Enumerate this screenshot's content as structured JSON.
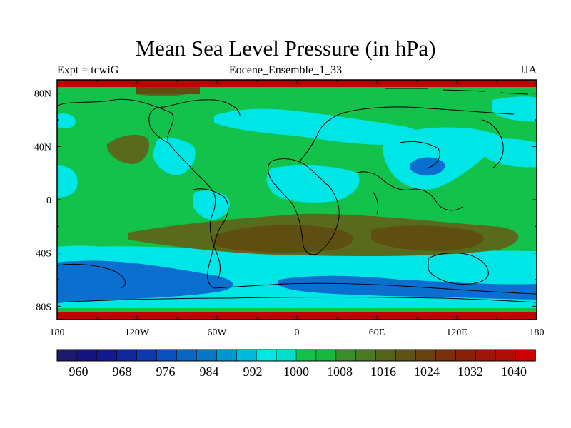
{
  "title": "Mean Sea Level Pressure (in hPa)",
  "subtitle_left": "Expt = tcwiG",
  "subtitle_center": "Eocene_Ensemble_1_33",
  "subtitle_right": "JJA",
  "colors": {
    "deep_blue": "#0a55b5",
    "mid_blue": "#0096d0",
    "cyan": "#00e6e6",
    "green": "#12c24a",
    "olive": "#5a6a1c",
    "brown": "#5e4e12",
    "dark_red": "#c00000",
    "coast": "#000000"
  },
  "map": {
    "projection": "cylindrical equidistant",
    "lon_range": [
      -180,
      180
    ],
    "lat_range": [
      -90,
      90
    ]
  },
  "axes": {
    "lat_ticks": [
      {
        "value": 80,
        "label": "80N"
      },
      {
        "value": 40,
        "label": "40N"
      },
      {
        "value": 0,
        "label": "0"
      },
      {
        "value": -40,
        "label": "40S"
      },
      {
        "value": -80,
        "label": "80S"
      }
    ],
    "lon_ticks": [
      {
        "value": -180,
        "label": "180"
      },
      {
        "value": -120,
        "label": "120W"
      },
      {
        "value": -60,
        "label": "60W"
      },
      {
        "value": 0,
        "label": "0"
      },
      {
        "value": 60,
        "label": "60E"
      },
      {
        "value": 120,
        "label": "120E"
      },
      {
        "value": 180,
        "label": "180"
      }
    ]
  },
  "colorbar": {
    "colors": [
      "#1a1a6e",
      "#16157f",
      "#131a8f",
      "#0f28a0",
      "#0c39b0",
      "#0850bf",
      "#0666c4",
      "#0579c8",
      "#0096d0",
      "#00b9dc",
      "#00e6e6",
      "#00e0d0",
      "#12c24a",
      "#18b840",
      "#3a8f2a",
      "#4a7a22",
      "#55631a",
      "#5e5414",
      "#6a4210",
      "#7a300c",
      "#8a200a",
      "#9e1408",
      "#b00c06",
      "#cc0000"
    ],
    "labels": [
      "960",
      "968",
      "976",
      "984",
      "992",
      "1000",
      "1008",
      "1016",
      "1024",
      "1032",
      "1040"
    ]
  }
}
